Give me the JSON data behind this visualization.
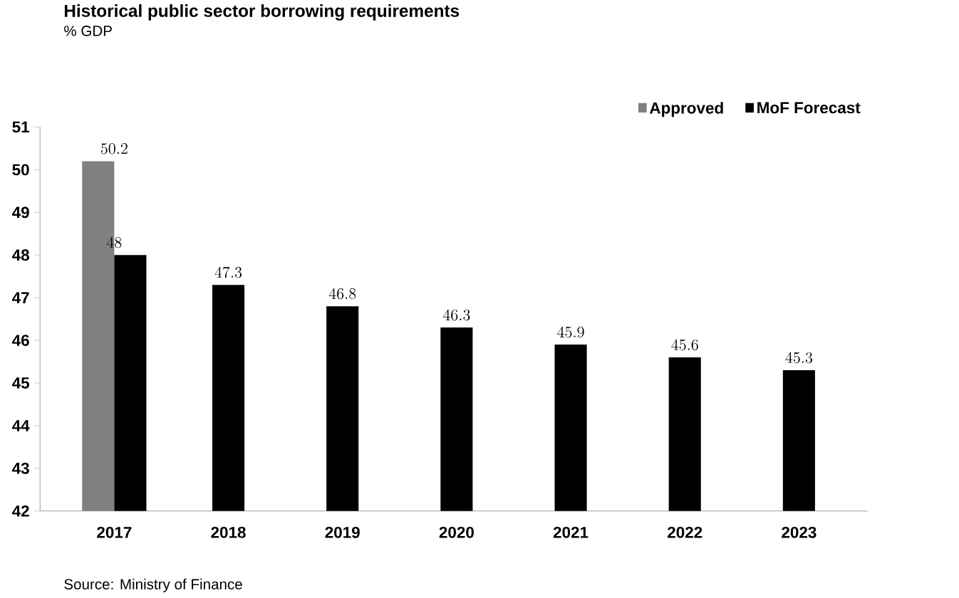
{
  "chart_data": {
    "type": "bar",
    "title": "Historical public sector borrowing requirements",
    "subtitle": "% GDP",
    "annotations": [
      "Source: Ministry of Finance"
    ],
    "categories": [
      "2017",
      "2018",
      "2019",
      "2020",
      "2021",
      "2022",
      "2023"
    ],
    "series": [
      {
        "name": "Approved",
        "color": "#808080",
        "values": [
          50.2,
          null,
          null,
          null,
          null,
          null,
          null
        ]
      },
      {
        "name": "MoF Forecast",
        "color": "#000000",
        "values": [
          48,
          47.3,
          46.8,
          46.3,
          45.9,
          45.6,
          45.3
        ]
      }
    ],
    "ylim": [
      42,
      51
    ],
    "yticks": [
      42,
      43,
      44,
      45,
      46,
      47,
      48,
      49,
      50,
      51
    ],
    "data_labels": true,
    "legend": "top right",
    "grid": false
  }
}
